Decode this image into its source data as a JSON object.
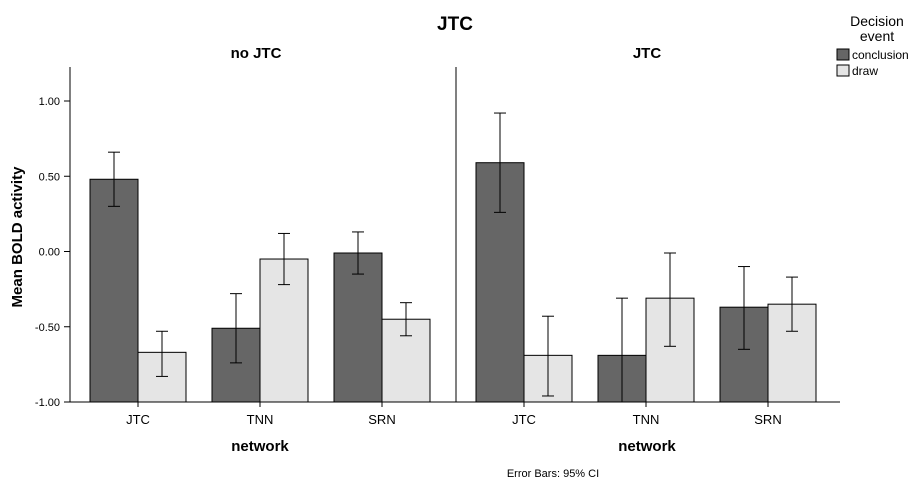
{
  "chart_data": {
    "type": "bar",
    "title": "JTC",
    "footnote": "Error Bars: 95% CI",
    "ylabel": "Mean BOLD activity",
    "xlabel": "network",
    "ylim": [
      -1.0,
      1.0
    ],
    "yticks": [
      "1.00",
      "0.50",
      "0.00",
      "-0.50",
      "-1.00"
    ],
    "ytick_values": [
      1.0,
      0.5,
      0.0,
      -0.5,
      -1.0
    ],
    "categories": [
      "JTC",
      "TNN",
      "SRN"
    ],
    "legend": {
      "title_line1": "Decision",
      "title_line2": "event",
      "position": "top-right",
      "entries": [
        "conclusion",
        "draw"
      ]
    },
    "colors": {
      "conclusion": "#666666",
      "draw": "#e5e5e5",
      "edge": "#000000"
    },
    "panels": [
      {
        "title": "no JTC",
        "series": [
          {
            "name": "conclusion",
            "values": [
              0.48,
              -0.51,
              -0.01
            ],
            "ci_low": [
              0.3,
              -0.74,
              -0.15
            ],
            "ci_high": [
              0.66,
              -0.28,
              0.13
            ]
          },
          {
            "name": "draw",
            "values": [
              -0.67,
              -0.05,
              -0.45
            ],
            "ci_low": [
              -0.83,
              -0.22,
              -0.56
            ],
            "ci_high": [
              -0.53,
              0.12,
              -0.34
            ]
          }
        ]
      },
      {
        "title": "JTC",
        "series": [
          {
            "name": "conclusion",
            "values": [
              0.59,
              -0.69,
              -0.37
            ],
            "ci_low": [
              0.26,
              -1.0,
              -0.65
            ],
            "ci_high": [
              0.92,
              -0.31,
              -0.1
            ]
          },
          {
            "name": "draw",
            "values": [
              -0.69,
              -0.31,
              -0.35
            ],
            "ci_low": [
              -0.96,
              -0.63,
              -0.53
            ],
            "ci_high": [
              -0.43,
              -0.01,
              -0.17
            ]
          }
        ]
      }
    ]
  }
}
